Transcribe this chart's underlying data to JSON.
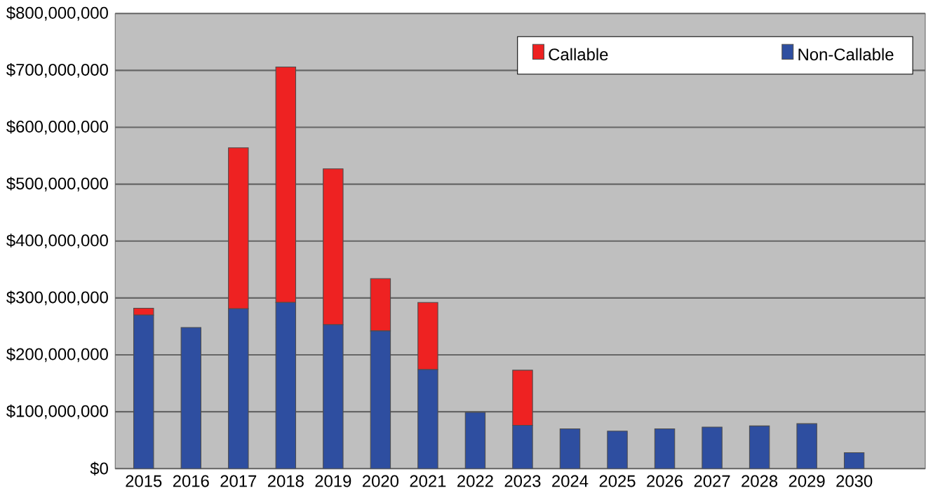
{
  "chart_data": {
    "type": "bar",
    "stacked": true,
    "categories": [
      "2015",
      "2016",
      "2017",
      "2018",
      "2019",
      "2020",
      "2021",
      "2022",
      "2023",
      "2024",
      "2025",
      "2026",
      "2027",
      "2028",
      "2029",
      "2030"
    ],
    "series": [
      {
        "name": "Non-Callable",
        "color": "#2e4ea0",
        "values": [
          270000000,
          248000000,
          281000000,
          292000000,
          253000000,
          242000000,
          174000000,
          99000000,
          76000000,
          70000000,
          66000000,
          70000000,
          73000000,
          75000000,
          79000000,
          28000000
        ]
      },
      {
        "name": "Callable",
        "color": "#ee2222",
        "values": [
          12000000,
          0,
          283000000,
          414000000,
          274000000,
          92000000,
          118000000,
          0,
          97000000,
          0,
          0,
          0,
          0,
          0,
          0,
          0
        ]
      }
    ],
    "ylim": [
      0,
      800000000
    ],
    "yticks": [
      {
        "value": 0,
        "label": "$0"
      },
      {
        "value": 100000000,
        "label": "$100,000,000"
      },
      {
        "value": 200000000,
        "label": "$200,000,000"
      },
      {
        "value": 300000000,
        "label": "$300,000,000"
      },
      {
        "value": 400000000,
        "label": "$400,000,000"
      },
      {
        "value": 500000000,
        "label": "$500,000,000"
      },
      {
        "value": 600000000,
        "label": "$600,000,000"
      },
      {
        "value": 700000000,
        "label": "$700,000,000"
      },
      {
        "value": 800000000,
        "label": "$800,000,000"
      }
    ],
    "grid": "y",
    "legend": "top right"
  }
}
